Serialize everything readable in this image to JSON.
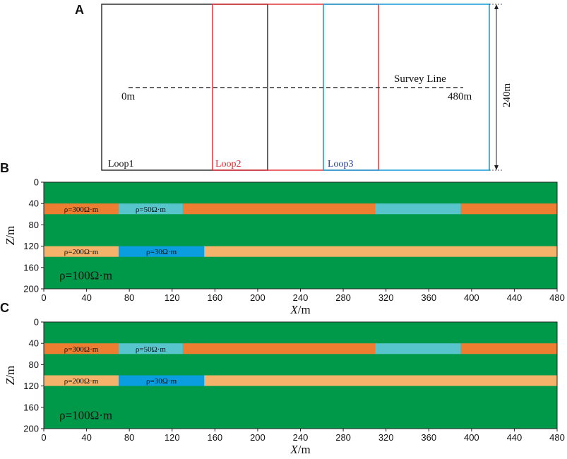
{
  "panel_a": {
    "letter": "A",
    "loops": [
      {
        "name": "Loop1",
        "color": "#222222"
      },
      {
        "name": "Loop2",
        "color": "#e0262b"
      },
      {
        "name": "Loop3",
        "color": "#1f9fd8"
      }
    ],
    "loop3_label_color": "#1f3a9e",
    "survey_line_label": "Survey Line",
    "start_label": "0m",
    "end_label": "480m",
    "height_label": "240m"
  },
  "colors": {
    "background": "#00994a",
    "orange": "#ed7d31",
    "light_blue": "#58c4cc",
    "light_orange": "#f4b26a",
    "blue": "#0a9de0"
  },
  "panels": [
    {
      "letter": "B",
      "x_label": "X",
      "x_unit": "/m",
      "y_label": "Z",
      "y_unit": "/m",
      "x_ticks": [
        "0",
        "40",
        "80",
        "120",
        "160",
        "200",
        "240",
        "280",
        "320",
        "360",
        "400",
        "440",
        "480"
      ],
      "y_ticks": [
        "0",
        "40",
        "80",
        "120",
        "160",
        "200"
      ],
      "background_label": "ρ=100Ω·m",
      "layers": [
        {
          "z_top": 40,
          "z_bottom": 60,
          "segments": [
            {
              "x0": 0,
              "x1": 70,
              "color": "orange",
              "label": "ρ=300Ω·m"
            },
            {
              "x0": 70,
              "x1": 130,
              "color": "light_blue",
              "label": "ρ=50Ω·m"
            },
            {
              "x0": 130,
              "x1": 310,
              "color": "orange",
              "label": ""
            },
            {
              "x0": 310,
              "x1": 390,
              "color": "light_blue",
              "label": ""
            },
            {
              "x0": 390,
              "x1": 480,
              "color": "orange",
              "label": ""
            }
          ]
        },
        {
          "z_top": 120,
          "z_bottom": 140,
          "segments": [
            {
              "x0": 0,
              "x1": 70,
              "color": "light_orange",
              "label": "ρ=200Ω·m"
            },
            {
              "x0": 70,
              "x1": 150,
              "color": "blue",
              "label": "ρ=30Ω·m"
            },
            {
              "x0": 150,
              "x1": 480,
              "color": "light_orange",
              "label": ""
            }
          ]
        }
      ]
    },
    {
      "letter": "C",
      "x_label": "X",
      "x_unit": "/m",
      "y_label": "Z",
      "y_unit": "/m",
      "x_ticks": [
        "0",
        "40",
        "80",
        "120",
        "160",
        "200",
        "240",
        "280",
        "320",
        "360",
        "400",
        "440",
        "480"
      ],
      "y_ticks": [
        "0",
        "40",
        "80",
        "120",
        "160",
        "200"
      ],
      "background_label": "ρ=100Ω·m",
      "layers": [
        {
          "z_top": 40,
          "z_bottom": 60,
          "segments": [
            {
              "x0": 0,
              "x1": 70,
              "color": "orange",
              "label": "ρ=300Ω·m"
            },
            {
              "x0": 70,
              "x1": 130,
              "color": "light_blue",
              "label": "ρ=50Ω·m"
            },
            {
              "x0": 130,
              "x1": 310,
              "color": "orange",
              "label": ""
            },
            {
              "x0": 310,
              "x1": 390,
              "color": "light_blue",
              "label": ""
            },
            {
              "x0": 390,
              "x1": 480,
              "color": "orange",
              "label": ""
            }
          ]
        },
        {
          "z_top": 100,
          "z_bottom": 120,
          "segments": [
            {
              "x0": 0,
              "x1": 70,
              "color": "light_orange",
              "label": "ρ=200Ω·m"
            },
            {
              "x0": 70,
              "x1": 150,
              "color": "blue",
              "label": "ρ=30Ω·m"
            },
            {
              "x0": 150,
              "x1": 480,
              "color": "light_orange",
              "label": ""
            }
          ]
        }
      ]
    }
  ]
}
